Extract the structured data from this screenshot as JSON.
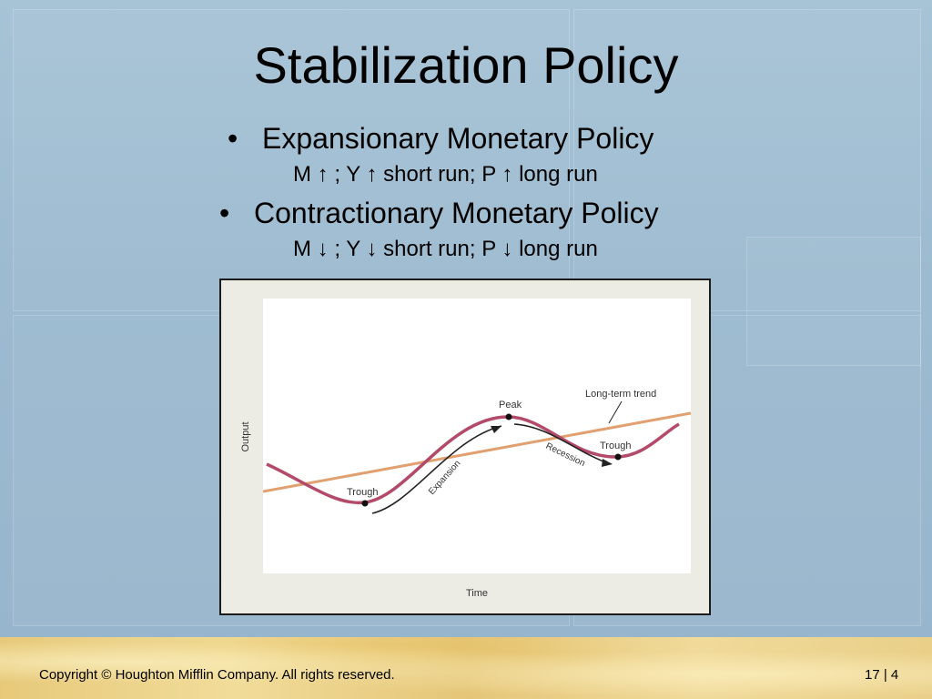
{
  "slide": {
    "title": "Stabilization Policy",
    "bullets": [
      {
        "text": "Expansionary Monetary Policy",
        "sub": "M ↑ ; Y ↑ short run; P ↑ long run"
      },
      {
        "text": "Contractionary Monetary Policy",
        "sub": "M ↓ ; Y ↓ short run; P ↓ long run"
      }
    ],
    "bullet_glyph": "•"
  },
  "figure": {
    "y_axis_label": "Output",
    "x_axis_label": "Time",
    "labels": {
      "trough_left": "Trough",
      "peak": "Peak",
      "trough_right": "Trough",
      "trend": "Long-term trend",
      "expansion": "Expansion",
      "recession": "Recession"
    },
    "colors": {
      "cycle": "#b34a6a",
      "trend": "#e0a070",
      "arrow": "#222222",
      "point": "#111111"
    }
  },
  "footer": {
    "copyright": "Copyright © Houghton Mifflin Company.  All rights reserved.",
    "page": "17 | 4"
  }
}
